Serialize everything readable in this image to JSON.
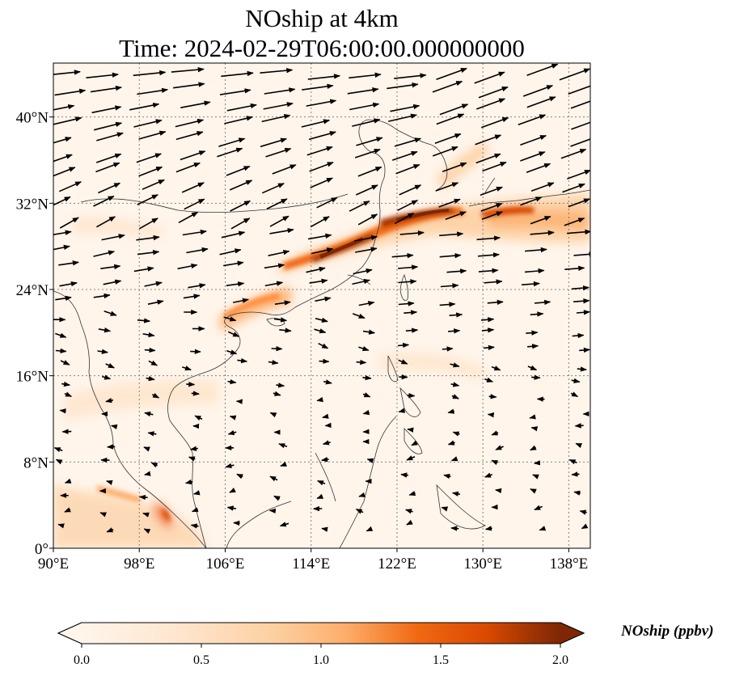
{
  "title": {
    "line1": "NOship at 4km",
    "line2": "Time: 2024-02-29T06:00:00.000000000"
  },
  "map": {
    "lon_range": [
      90,
      140
    ],
    "lat_range": [
      0,
      45
    ],
    "lon_ticks": [
      {
        "value": 90,
        "label": "90°E"
      },
      {
        "value": 98,
        "label": "98°E"
      },
      {
        "value": 106,
        "label": "106°E"
      },
      {
        "value": 114,
        "label": "114°E"
      },
      {
        "value": 122,
        "label": "122°E"
      },
      {
        "value": 130,
        "label": "130°E"
      },
      {
        "value": 138,
        "label": "138°E"
      }
    ],
    "lat_ticks": [
      {
        "value": 0,
        "label": "0°"
      },
      {
        "value": 8,
        "label": "8°N"
      },
      {
        "value": 16,
        "label": "16°N"
      },
      {
        "value": 24,
        "label": "24°N"
      },
      {
        "value": 32,
        "label": "32°N"
      },
      {
        "value": 40,
        "label": "40°N"
      }
    ],
    "gridlines": true,
    "field_colors": {
      "background": "#fff5eb",
      "low": "#fdd0a2",
      "mid": "#f16913",
      "high": "#a63603",
      "peak": "#7f2704"
    }
  },
  "colorbar": {
    "label": "NOship (ppbv)",
    "min": 0.0,
    "max": 2.0,
    "ticks": [
      {
        "value": 0.0,
        "label": "0.0"
      },
      {
        "value": 0.5,
        "label": "0.5"
      },
      {
        "value": 1.0,
        "label": "1.0"
      },
      {
        "value": 1.5,
        "label": "1.5"
      },
      {
        "value": 2.0,
        "label": "2.0"
      }
    ],
    "extend": "both"
  }
}
